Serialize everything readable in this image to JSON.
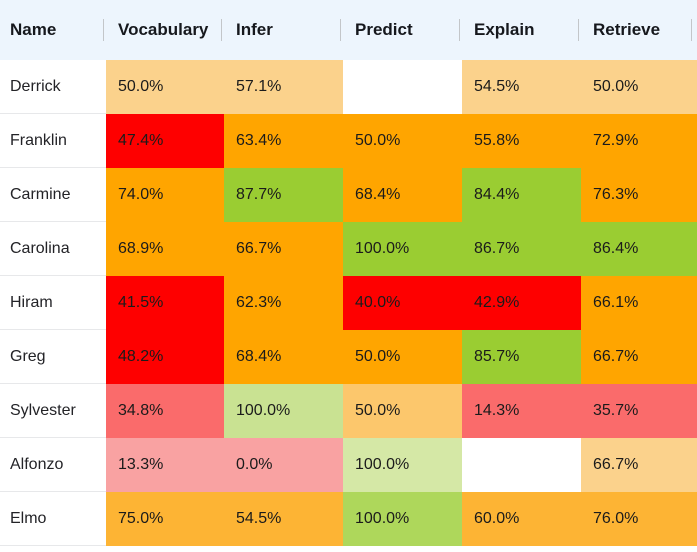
{
  "table": {
    "columns": [
      "Name",
      "Vocabulary",
      "Infer",
      "Predict",
      "Explain",
      "Retrieve"
    ],
    "rows": [
      {
        "name": "Derrick",
        "cells": [
          {
            "value": "50.0%",
            "color": "#FBD28C"
          },
          {
            "value": "57.1%",
            "color": "#FBD28C"
          },
          {
            "value": "",
            "color": "#FFFFFF"
          },
          {
            "value": "54.5%",
            "color": "#FBD28C"
          },
          {
            "value": "50.0%",
            "color": "#FBD28C"
          }
        ]
      },
      {
        "name": "Franklin",
        "cells": [
          {
            "value": "47.4%",
            "color": "#FE0000"
          },
          {
            "value": "63.4%",
            "color": "#FFA500"
          },
          {
            "value": "50.0%",
            "color": "#FFA500"
          },
          {
            "value": "55.8%",
            "color": "#FFA500"
          },
          {
            "value": "72.9%",
            "color": "#FFA500"
          }
        ]
      },
      {
        "name": "Carmine",
        "cells": [
          {
            "value": "74.0%",
            "color": "#FFA500"
          },
          {
            "value": "87.7%",
            "color": "#9ACD32"
          },
          {
            "value": "68.4%",
            "color": "#FFA500"
          },
          {
            "value": "84.4%",
            "color": "#9ACD32"
          },
          {
            "value": "76.3%",
            "color": "#FFA500"
          }
        ]
      },
      {
        "name": "Carolina",
        "cells": [
          {
            "value": "68.9%",
            "color": "#FFA500"
          },
          {
            "value": "66.7%",
            "color": "#FFA500"
          },
          {
            "value": "100.0%",
            "color": "#9ACD32"
          },
          {
            "value": "86.7%",
            "color": "#9ACD32"
          },
          {
            "value": "86.4%",
            "color": "#9ACD32"
          }
        ]
      },
      {
        "name": "Hiram",
        "cells": [
          {
            "value": "41.5%",
            "color": "#FE0000"
          },
          {
            "value": "62.3%",
            "color": "#FFA500"
          },
          {
            "value": "40.0%",
            "color": "#FE0000"
          },
          {
            "value": "42.9%",
            "color": "#FE0000"
          },
          {
            "value": "66.1%",
            "color": "#FFA500"
          }
        ]
      },
      {
        "name": "Greg",
        "cells": [
          {
            "value": "48.2%",
            "color": "#FE0000"
          },
          {
            "value": "68.4%",
            "color": "#FFA500"
          },
          {
            "value": "50.0%",
            "color": "#FFA500"
          },
          {
            "value": "85.7%",
            "color": "#9ACD32"
          },
          {
            "value": "66.7%",
            "color": "#FFA500"
          }
        ]
      },
      {
        "name": "Sylvester",
        "cells": [
          {
            "value": "34.8%",
            "color": "#FA6B6B"
          },
          {
            "value": "100.0%",
            "color": "#C9E292"
          },
          {
            "value": "50.0%",
            "color": "#FCC76C"
          },
          {
            "value": "14.3%",
            "color": "#FA6B6B"
          },
          {
            "value": "35.7%",
            "color": "#FA6B6B"
          }
        ]
      },
      {
        "name": "Alfonzo",
        "cells": [
          {
            "value": "13.3%",
            "color": "#F9A2A2"
          },
          {
            "value": "0.0%",
            "color": "#F9A2A2"
          },
          {
            "value": "100.0%",
            "color": "#D5E8A6"
          },
          {
            "value": "",
            "color": "#FFFFFF"
          },
          {
            "value": "66.7%",
            "color": "#FBD28C"
          }
        ]
      },
      {
        "name": "Elmo",
        "cells": [
          {
            "value": "75.0%",
            "color": "#FDB434"
          },
          {
            "value": "54.5%",
            "color": "#FDB434"
          },
          {
            "value": "100.0%",
            "color": "#AED75B"
          },
          {
            "value": "60.0%",
            "color": "#FDB434"
          },
          {
            "value": "76.0%",
            "color": "#FDB434"
          }
        ]
      }
    ]
  },
  "style": {
    "header_bg": "#EDF5FD",
    "header_text": "#16181D",
    "divider": "#C3C6C9",
    "row_border": "#E7E8EA",
    "score_high": "#9ACD32",
    "score_mid": "#FFA500",
    "score_low": "#FE0000"
  }
}
